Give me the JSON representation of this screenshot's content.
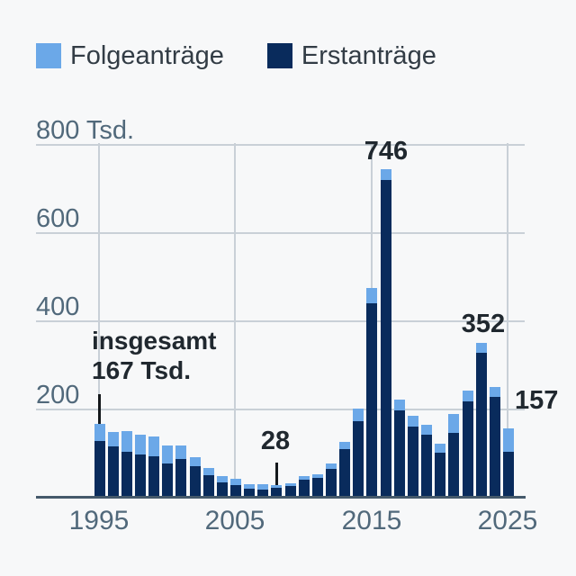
{
  "legend": {
    "items": [
      {
        "label": "Folgeanträge",
        "color": "#6BA8E8"
      },
      {
        "label": "Erstanträge",
        "color": "#092B5C"
      }
    ]
  },
  "axis": {
    "y": {
      "t200": "200",
      "t400": "400",
      "t600": "600",
      "t800": "800 Tsd."
    },
    "x": {
      "t1995": "1995",
      "t2005": "2005",
      "t2015": "2015",
      "t2025": "2025"
    }
  },
  "callouts": {
    "y1995_line1": "insgesamt",
    "y1995_line2": "167 Tsd.",
    "y2008": "28",
    "y2016": "746",
    "y2023": "352",
    "y2025": "157"
  },
  "chart_data": {
    "type": "bar",
    "stacked": true,
    "unit": "Tsd.",
    "title": "",
    "xlabel": "",
    "ylabel": "Tsd.",
    "ylim": [
      0,
      800
    ],
    "y_ticks": [
      200,
      400,
      600,
      800
    ],
    "x_ticks": [
      1995,
      2005,
      2015,
      2025
    ],
    "grid": true,
    "legend_position": "top",
    "x": [
      1995,
      1996,
      1997,
      1998,
      1999,
      2000,
      2001,
      2002,
      2003,
      2004,
      2005,
      2006,
      2007,
      2008,
      2009,
      2010,
      2011,
      2012,
      2013,
      2014,
      2015,
      2016,
      2017,
      2018,
      2019,
      2020,
      2021,
      2022,
      2023,
      2024,
      2025
    ],
    "series": [
      {
        "name": "Erstanträge",
        "color": "#092B5C",
        "values": [
          127.9,
          116.4,
          104.4,
          98.6,
          95.1,
          78.6,
          88.3,
          71.1,
          50.6,
          35.6,
          28.9,
          21.0,
          19.2,
          22.1,
          27.6,
          41.3,
          45.7,
          64.5,
          109.6,
          173.1,
          441.9,
          722.4,
          198.3,
          161.9,
          142.5,
          102.6,
          148.2,
          217.8,
          329.1,
          229.8,
          105.0
        ]
      },
      {
        "name": "Folgeanträge",
        "color": "#6BA8E8",
        "values": [
          39.0,
          32.8,
          47.3,
          44.7,
          43.3,
          39.0,
          30.0,
          20.3,
          17.2,
          14.4,
          14.0,
          9.1,
          11.1,
          5.9,
          5.4,
          7.3,
          7.9,
          13.2,
          17.4,
          29.8,
          34.8,
          23.2,
          24.4,
          24.0,
          23.7,
          19.6,
          42.4,
          26.4,
          22.8,
          21.0,
          52.0
        ]
      }
    ],
    "annotations": [
      {
        "target_year": 1995,
        "text": "insgesamt 167 Tsd."
      },
      {
        "target_year": 2008,
        "text": "28"
      },
      {
        "target_year": 2016,
        "text": "746"
      },
      {
        "target_year": 2023,
        "text": "352"
      },
      {
        "target_year": 2025,
        "text": "157"
      }
    ]
  }
}
